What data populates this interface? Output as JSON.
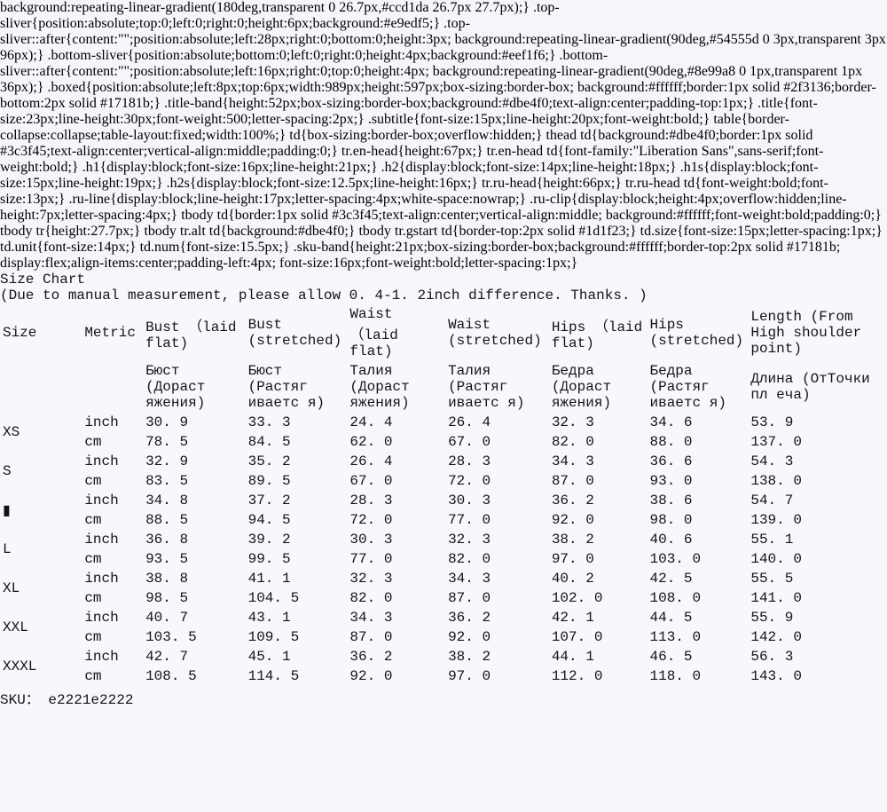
{
  "title": "Size Chart",
  "subtitle": "(Due to manual measurement, please allow 0. 4-1. 2inch difference. Thanks. )",
  "sku": "SKU： e2221e2222",
  "units": [
    "inch",
    "cm"
  ],
  "columns": [
    {
      "l1": "Size"
    },
    {
      "l1": "Metric"
    },
    {
      "l1": "Bust",
      "l2": "（laid flat)",
      "ru": [
        "Бюст",
        "(Дораст",
        "яжения)"
      ]
    },
    {
      "l1": "Bust",
      "l2": "(stretched)",
      "ru": [
        "Бюст",
        "(Растяг",
        "иваетс"
      ],
      "ru_clip": "я)"
    },
    {
      "l1": "Waist",
      "l2": "（laid flat)",
      "ru": [
        "Талия",
        "(Дораст",
        "яжения)"
      ]
    },
    {
      "l1": "Waist",
      "l2": "(stretched)",
      "ru": [
        "Талия",
        "(Растяг",
        "иваетс"
      ],
      "ru_clip": "я)"
    },
    {
      "l1": "Hips",
      "l2": "（laid flat)",
      "ru": [
        "Бедра",
        "(Дораст",
        "яжения)"
      ]
    },
    {
      "l1": "Hips",
      "l2": "(stretched)",
      "ru": [
        "Бедра",
        "(Растяг",
        "иваетс"
      ],
      "ru_clip": "я)"
    },
    {
      "l1": "Length",
      "l2": "(From High shoulder",
      "l3": "point)",
      "ru": [
        "Длина",
        "(ОтТочки пл",
        "еча)"
      ]
    }
  ],
  "sizes": [
    {
      "label": "XS",
      "inch": [
        "30. 9",
        "33. 3",
        "24. 4",
        "26. 4",
        "32. 3",
        "34. 6",
        "53. 9"
      ],
      "cm": [
        "78. 5",
        "84. 5",
        "62. 0",
        "67. 0",
        "82. 0",
        "88. 0",
        "137. 0"
      ]
    },
    {
      "label": "S",
      "inch": [
        "32. 9",
        "35. 2",
        "26. 4",
        "28. 3",
        "34. 3",
        "36. 6",
        "54. 3"
      ],
      "cm": [
        "83. 5",
        "89. 5",
        "67. 0",
        "72. 0",
        "87. 0",
        "93. 0",
        "138. 0"
      ]
    },
    {
      "label": "▮",
      "inch": [
        "34. 8",
        "37. 2",
        "28. 3",
        "30. 3",
        "36. 2",
        "38. 6",
        "54. 7"
      ],
      "cm": [
        "88. 5",
        "94. 5",
        "72. 0",
        "77. 0",
        "92. 0",
        "98. 0",
        "139. 0"
      ]
    },
    {
      "label": "L",
      "inch": [
        "36. 8",
        "39. 2",
        "30. 3",
        "32. 3",
        "38. 2",
        "40. 6",
        "55. 1"
      ],
      "cm": [
        "93. 5",
        "99. 5",
        "77. 0",
        "82. 0",
        "97. 0",
        "103. 0",
        "140. 0"
      ]
    },
    {
      "label": "XL",
      "inch": [
        "38. 8",
        "41. 1",
        "32. 3",
        "34. 3",
        "40. 2",
        "42. 5",
        "55. 5"
      ],
      "cm": [
        "98. 5",
        "104. 5",
        "82. 0",
        "87. 0",
        "102. 0",
        "108. 0",
        "141. 0"
      ]
    },
    {
      "label": "XXL",
      "inch": [
        "40. 7",
        "43. 1",
        "34. 3",
        "36. 2",
        "42. 1",
        "44. 5",
        "55. 9"
      ],
      "cm": [
        "103. 5",
        "109. 5",
        "87. 0",
        "92. 0",
        "107. 0",
        "113. 0",
        "142. 0"
      ]
    },
    {
      "label": "XXXL",
      "inch": [
        "42. 7",
        "45. 1",
        "36. 2",
        "38. 2",
        "44. 1",
        "46. 5",
        "56. 3"
      ],
      "cm": [
        "108. 5",
        "114. 5",
        "92. 0",
        "97. 0",
        "112. 0",
        "118. 0",
        "143. 0"
      ]
    }
  ],
  "colors": {
    "band_bg": "#dbe4f0",
    "alt_row_bg": "#dbe4f0",
    "row_bg": "#ffffff",
    "grid_border": "#3c3f45",
    "outer_border": "#17181b",
    "text": "#141414"
  }
}
